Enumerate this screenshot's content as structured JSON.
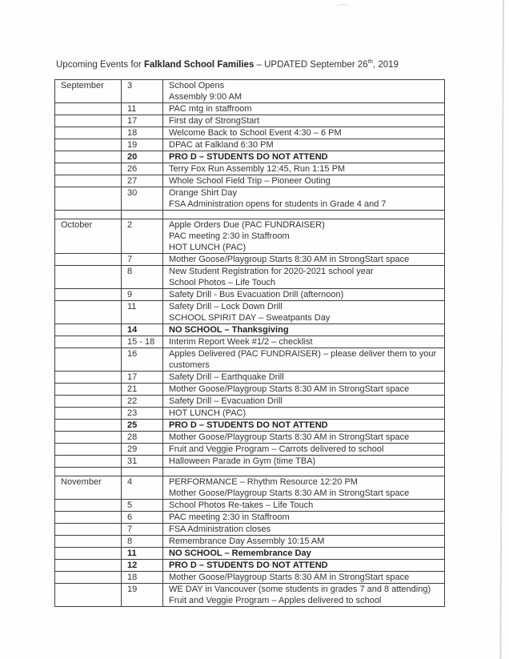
{
  "title": {
    "prefix": "Upcoming Events for ",
    "bold": "Falkland School Families",
    "middle": " – UPDATED September 26",
    "superscript": "th",
    "suffix": ", 2019"
  },
  "table": {
    "rows": [
      {
        "month": "September",
        "date": "3",
        "lines": [
          "School Opens",
          "Assembly 9:00 AM"
        ]
      },
      {
        "month": "",
        "date": "11",
        "lines": [
          "PAC mtg in staffroom"
        ]
      },
      {
        "month": "",
        "date": "17",
        "lines": [
          "First day of StrongStart"
        ]
      },
      {
        "month": "",
        "date": "18",
        "lines": [
          "Welcome Back to School Event 4:30 – 6 PM"
        ]
      },
      {
        "month": "",
        "date": "19",
        "lines": [
          "DPAC at Falkland 6:30 PM"
        ]
      },
      {
        "month": "",
        "date": "20",
        "lines": [
          "PRO D – STUDENTS DO NOT ATTEND"
        ],
        "bold": true
      },
      {
        "month": "",
        "date": "26",
        "lines": [
          "Terry Fox Run Assembly 12:45, Run 1:15 PM"
        ]
      },
      {
        "month": "",
        "date": "27",
        "lines": [
          "Whole School Field Trip – Pioneer Outing"
        ]
      },
      {
        "month": "",
        "date": "30",
        "lines": [
          "Orange Shirt Day",
          "FSA Administration opens for students in Grade 4 and 7"
        ]
      },
      {
        "spacer": true
      },
      {
        "month": "October",
        "date": "2",
        "lines": [
          "Apple Orders Due (PAC FUNDRAISER)",
          "PAC meeting 2:30 in Staffroom",
          "HOT LUNCH (PAC)"
        ]
      },
      {
        "month": "",
        "date": "7",
        "lines": [
          "Mother Goose/Playgroup Starts 8:30 AM in StrongStart space"
        ]
      },
      {
        "month": "",
        "date": "8",
        "lines": [
          "New Student Registration for 2020-2021 school year",
          "School Photos – Life Touch"
        ]
      },
      {
        "month": "",
        "date": "9",
        "lines": [
          "Safety Drill - Bus Evacuation Drill (afternoon)"
        ]
      },
      {
        "month": "",
        "date": "11",
        "lines": [
          "Safety Drill – Lock Down Drill",
          "SCHOOL SPIRIT DAY – Sweatpants Day"
        ]
      },
      {
        "month": "",
        "date": "14",
        "lines": [
          "NO SCHOOL – Thanksgiving"
        ],
        "bold": true
      },
      {
        "month": "",
        "date": "15 - 18",
        "lines": [
          "Interim Report Week #1/2 – checklist"
        ]
      },
      {
        "month": "",
        "date": "16",
        "lines": [
          "Apples Delivered (PAC FUNDRAISER) – please deliver them to your",
          "customers"
        ]
      },
      {
        "month": "",
        "date": "17",
        "lines": [
          "Safety Drill – Earthquake Drill"
        ]
      },
      {
        "month": "",
        "date": "21",
        "lines": [
          "Mother Goose/Playgroup Starts 8:30 AM in StrongStart space"
        ]
      },
      {
        "month": "",
        "date": "22",
        "lines": [
          "Safety Drill – Evacuation Drill"
        ]
      },
      {
        "month": "",
        "date": "23",
        "lines": [
          "HOT LUNCH (PAC)"
        ]
      },
      {
        "month": "",
        "date": "25",
        "lines": [
          "PRO D – STUDENTS DO NOT ATTEND"
        ],
        "bold": true
      },
      {
        "month": "",
        "date": "28",
        "lines": [
          "Mother Goose/Playgroup Starts 8:30 AM in StrongStart space"
        ]
      },
      {
        "month": "",
        "date": "29",
        "lines": [
          "Fruit and Veggie Program – Carrots delivered to school"
        ]
      },
      {
        "month": "",
        "date": "31",
        "lines": [
          "Halloween Parade in Gym (time TBA)"
        ]
      },
      {
        "spacer": true
      },
      {
        "month": "November",
        "date": "4",
        "lines": [
          "PERFORMANCE – Rhythm Resource 12:20 PM",
          "Mother Goose/Playgroup Starts 8:30 AM in StrongStart space"
        ]
      },
      {
        "month": "",
        "date": "5",
        "lines": [
          "School Photos Re-takes – Life Touch"
        ]
      },
      {
        "month": "",
        "date": "6",
        "lines": [
          "PAC meeting 2:30 in Staffroom"
        ]
      },
      {
        "month": "",
        "date": "7",
        "lines": [
          "FSA Administration closes"
        ]
      },
      {
        "month": "",
        "date": "8",
        "lines": [
          "Remembrance Day Assembly 10:15 AM"
        ]
      },
      {
        "month": "",
        "date": "11",
        "lines": [
          "NO SCHOOL – Remembrance Day"
        ],
        "bold": true
      },
      {
        "month": "",
        "date": "12",
        "lines": [
          "PRO D – STUDENTS DO NOT ATTEND"
        ],
        "bold": true
      },
      {
        "month": "",
        "date": "18",
        "lines": [
          "Mother Goose/Playgroup Starts 8:30 AM in StrongStart space"
        ]
      },
      {
        "month": "",
        "date": "19",
        "lines": [
          "WE DAY in Vancouver (some students in grades 7 and 8 attending)",
          "Fruit and Veggie Program – Apples delivered to school"
        ]
      }
    ]
  }
}
